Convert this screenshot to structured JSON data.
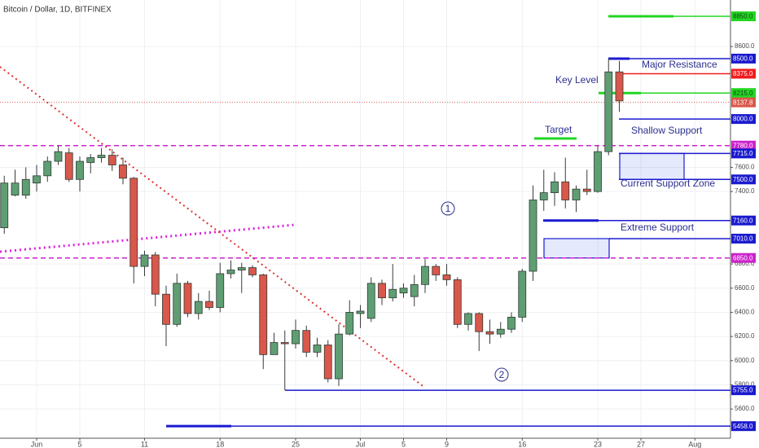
{
  "chart_data": {
    "type": "candlestick",
    "title": "Bitcoin / Dollar, 1D, BITFINEX",
    "categories": [
      null,
      null,
      null,
      "Jun",
      null,
      null,
      null,
      "5",
      null,
      null,
      null,
      null,
      null,
      "11",
      null,
      null,
      null,
      null,
      null,
      null,
      "18",
      null,
      null,
      null,
      null,
      null,
      null,
      "25",
      null,
      null,
      null,
      null,
      null,
      "Jul",
      null,
      null,
      null,
      "5",
      null,
      null,
      null,
      "9",
      null,
      null,
      null,
      null,
      null,
      null,
      "16",
      null,
      null,
      null,
      null,
      null,
      null,
      "23",
      null,
      null,
      null,
      "27",
      null,
      null,
      null,
      null,
      "Aug",
      null,
      null,
      null
    ],
    "open": [
      7100,
      7370,
      7370,
      7470,
      7530,
      7650,
      7720,
      7500,
      7640,
      7680,
      7700,
      7620,
      7510,
      6780,
      6875,
      6550,
      6300,
      6640,
      6390,
      6490,
      6440,
      6720,
      6750,
      6770,
      6710,
      6050,
      6150,
      6140,
      6250,
      6070,
      6130,
      5850,
      6220,
      6390,
      6350,
      6640,
      6520,
      6560,
      6530,
      6630,
      6780,
      6710,
      6670,
      6300,
      6390,
      6240,
      6220,
      6260,
      6360,
      6740,
      7330,
      7390,
      7480,
      7330,
      7420,
      7400,
      7730,
      8390,
      null,
      null,
      null,
      null,
      null,
      null,
      null,
      null,
      null,
      null
    ],
    "high": [
      7530,
      7580,
      7600,
      7620,
      7690,
      7780,
      7760,
      7690,
      7710,
      7760,
      7750,
      7680,
      7520,
      6910,
      6900,
      6620,
      6720,
      6660,
      6560,
      6580,
      6810,
      6830,
      6810,
      6790,
      6720,
      6230,
      6250,
      6340,
      6290,
      6190,
      6170,
      6300,
      6500,
      6460,
      6690,
      6670,
      6800,
      6640,
      6710,
      6840,
      6800,
      6800,
      6690,
      6400,
      6400,
      6340,
      6320,
      6400,
      6760,
      7450,
      7580,
      7560,
      7680,
      7450,
      7580,
      7780,
      8500,
      8480,
      null,
      null,
      null,
      null,
      null,
      null,
      null,
      null,
      null,
      null
    ],
    "low": [
      7050,
      7360,
      7340,
      7400,
      7480,
      7620,
      7480,
      7400,
      7550,
      7640,
      7570,
      7460,
      6640,
      6700,
      6450,
      6120,
      6280,
      6360,
      6340,
      6420,
      6400,
      6680,
      6560,
      6690,
      5930,
      6050,
      5755,
      6100,
      6030,
      6030,
      5820,
      5790,
      6210,
      6270,
      6320,
      6460,
      6490,
      6520,
      6450,
      6560,
      6660,
      6620,
      6270,
      6250,
      6080,
      6140,
      6190,
      6230,
      6320,
      6660,
      7240,
      7280,
      7260,
      7230,
      7370,
      7390,
      7700,
      8060,
      null,
      null,
      null,
      null,
      null,
      null,
      null,
      null,
      null,
      null
    ],
    "close": [
      7470,
      7470,
      7500,
      7530,
      7650,
      7730,
      7500,
      7650,
      7680,
      7700,
      7620,
      7510,
      6780,
      6875,
      6550,
      6300,
      6640,
      6390,
      6490,
      6440,
      6720,
      6750,
      6770,
      6710,
      6050,
      6150,
      6140,
      6250,
      6070,
      6130,
      5850,
      6220,
      6400,
      6410,
      6640,
      6520,
      6590,
      6600,
      6630,
      6780,
      6710,
      6670,
      6300,
      6390,
      6240,
      6220,
      6260,
      6360,
      6740,
      7330,
      7390,
      7480,
      7330,
      7420,
      7400,
      7730,
      8390,
      8150,
      null,
      null,
      null,
      null,
      null,
      null,
      null,
      null,
      null,
      null
    ],
    "up_color": "#5f9e73",
    "down_color": "#d9574b",
    "ylim": [
      5358,
      8985
    ],
    "yticks": [
      {
        "value": 5600,
        "label": "5600.0"
      },
      {
        "value": 5800,
        "label": "5800.0"
      },
      {
        "value": 6000,
        "label": "6000.0"
      },
      {
        "value": 6200,
        "label": "6200.0"
      },
      {
        "value": 6400,
        "label": "6400.0"
      },
      {
        "value": 6600,
        "label": "6600.0"
      },
      {
        "value": 6800,
        "label": "6800.0"
      },
      {
        "value": 7400,
        "label": "7400.0"
      },
      {
        "value": 7600,
        "label": "7600.0"
      },
      {
        "value": 8600,
        "label": "8600.0"
      }
    ],
    "grid": true,
    "levels": [
      {
        "value": 8850,
        "label": "8850.0",
        "color": "#22d622",
        "text_color": "#1b3a1b",
        "style": "solid"
      },
      {
        "value": 8500,
        "label": "8500.0",
        "color": "#1a1acf",
        "text_color": "#ffffff",
        "style": "solid"
      },
      {
        "value": 8375,
        "label": "8375.0",
        "color": "#f01c1c",
        "text_color": "#ffffff",
        "style": "solid"
      },
      {
        "value": 8215,
        "label": "8215.0",
        "color": "#22d622",
        "text_color": "#1b3a1b",
        "style": "solid"
      },
      {
        "value": 8137.8,
        "label": "8137.8",
        "color": "#d9574b",
        "text_color": "#ffffff",
        "style": "dotted"
      },
      {
        "value": 8000,
        "label": "8000.0",
        "color": "#1a1acf",
        "text_color": "#ffffff",
        "style": "solid"
      },
      {
        "value": 7780,
        "label": "7780.0",
        "color": "#cc22cc",
        "text_color": "#ffffff",
        "style": "dashed"
      },
      {
        "value": 7715,
        "label": "7715.0",
        "color": "#1a1acf",
        "text_color": "#ffffff",
        "style": "solid"
      },
      {
        "value": 7500,
        "label": "7500.0",
        "color": "#1a1acf",
        "text_color": "#ffffff",
        "style": "solid"
      },
      {
        "value": 7160,
        "label": "7160.0",
        "color": "#1a1acf",
        "text_color": "#ffffff",
        "style": "solid"
      },
      {
        "value": 7010,
        "label": "7010.0",
        "color": "#1a1acf",
        "text_color": "#ffffff",
        "style": "solid"
      },
      {
        "value": 6850,
        "label": "6850.0",
        "color": "#cc22cc",
        "text_color": "#ffffff",
        "style": "dashed"
      },
      {
        "value": 5755,
        "label": "5755.0",
        "color": "#1a1acf",
        "text_color": "#ffffff",
        "style": "solid"
      },
      {
        "value": 5458,
        "label": "5458.0",
        "color": "#1a1acf",
        "text_color": "#ffffff",
        "style": "solid"
      }
    ],
    "annotations": [
      "Major Resistance",
      "Key Level",
      "Target",
      "Shallow Support",
      "Current Support Zone",
      "Extreme Support",
      "1",
      "2"
    ]
  }
}
